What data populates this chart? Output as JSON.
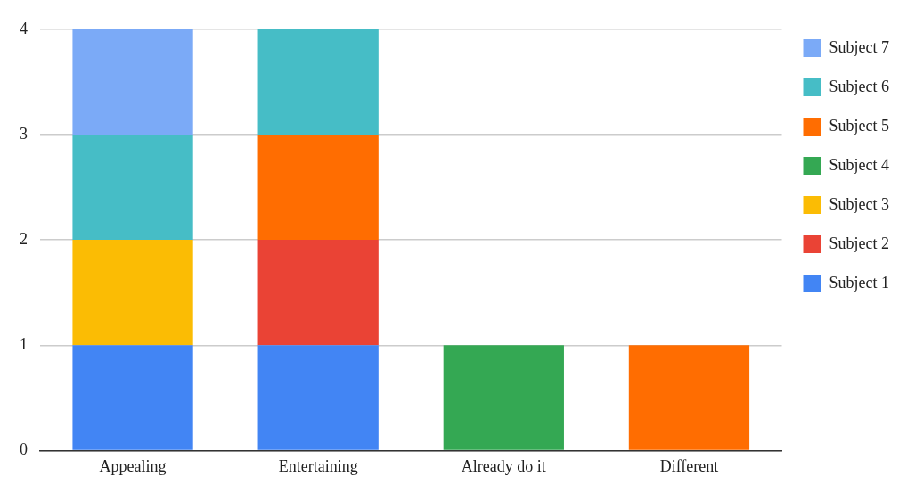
{
  "chart_data": {
    "type": "bar",
    "stacked": true,
    "categories": [
      "Appealing",
      "Entertaining",
      "Already do it",
      "Different"
    ],
    "series": [
      {
        "name": "Subject 1",
        "color": "#4285f4",
        "values": [
          1,
          1,
          null,
          null
        ]
      },
      {
        "name": "Subject 2",
        "color": "#ea4335",
        "values": [
          null,
          1,
          null,
          null
        ]
      },
      {
        "name": "Subject 3",
        "color": "#fbbc04",
        "values": [
          1,
          null,
          null,
          null
        ]
      },
      {
        "name": "Subject 4",
        "color": "#34a853",
        "values": [
          null,
          null,
          1,
          null
        ]
      },
      {
        "name": "Subject 5",
        "color": "#ff6d01",
        "values": [
          null,
          1,
          null,
          1
        ]
      },
      {
        "name": "Subject 6",
        "color": "#46bdc6",
        "values": [
          1,
          1,
          null,
          null
        ]
      },
      {
        "name": "Subject 7",
        "color": "#7baaf7",
        "values": [
          1,
          null,
          null,
          null
        ]
      }
    ],
    "ylim": [
      0,
      4
    ],
    "yticks": [
      0,
      1,
      2,
      3,
      4
    ],
    "grid": "y",
    "legend": "right"
  }
}
